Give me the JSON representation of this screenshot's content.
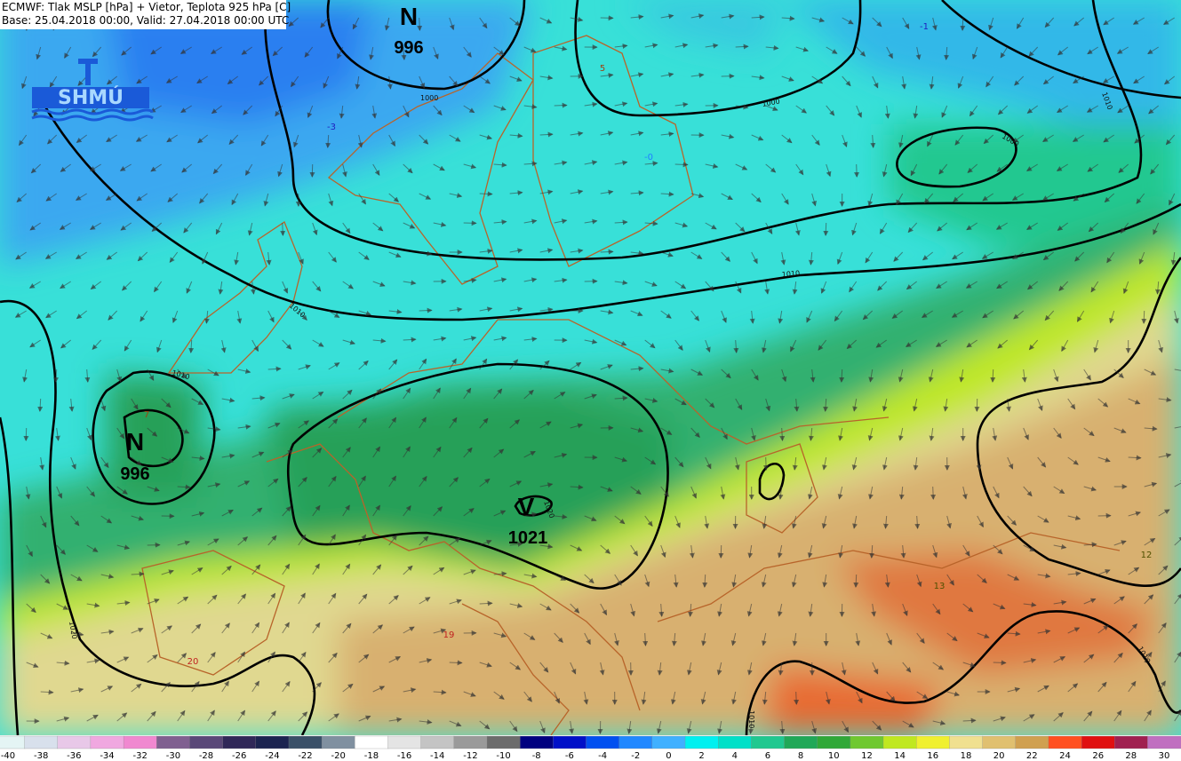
{
  "header": {
    "line1": "ECMWF: Tlak MSLP [hPa] + Vietor, Teplota 925 hPa [C]",
    "line2": "Base: 25.04.2018 00:00, Valid: 27.04.2018 00:00 UTC"
  },
  "logo": "SHMÚ",
  "pressure_centers": [
    {
      "symbol": "N",
      "value": "996"
    },
    {
      "symbol": "N",
      "value": "996"
    },
    {
      "symbol": "V",
      "value": "1021"
    }
  ],
  "isobar_labels": [
    "1000",
    "1000",
    "1000",
    "1010",
    "1010",
    "1010",
    "1010",
    "1020",
    "1020",
    "1010",
    "1010"
  ],
  "temperature_labels": [
    "-1",
    "-3",
    "-0",
    "5",
    "7",
    "20",
    "19",
    "13",
    "12"
  ],
  "colorbar": {
    "labels": [
      -40,
      -38,
      -36,
      -34,
      -32,
      -30,
      -28,
      -26,
      -24,
      -22,
      -20,
      -18,
      -16,
      -14,
      -12,
      -10,
      -8,
      -6,
      -4,
      -2,
      0,
      2,
      4,
      6,
      8,
      10,
      12,
      14,
      16,
      18,
      20,
      22,
      24,
      26,
      28,
      30
    ],
    "colors": [
      "#e4f4f4",
      "#d8e0ec",
      "#e8c8e8",
      "#f0a8e0",
      "#f088d0",
      "#806090",
      "#5a4878",
      "#302858",
      "#1c2450",
      "#3a5068",
      "#8090a0",
      "#ffffff",
      "#e4e4e4",
      "#c4c4c4",
      "#9a9a9a",
      "#6c6c6c",
      "#000080",
      "#0010c8",
      "#0050f0",
      "#2088ff",
      "#40b0ff",
      "#00f0f0",
      "#00e0c8",
      "#20c890",
      "#20a858",
      "#30a838",
      "#70c830",
      "#c0e820",
      "#f0f030",
      "#f0e090",
      "#e0c070",
      "#d0a050",
      "#ff5020",
      "#e01010",
      "#a02050",
      "#c070c0"
    ]
  }
}
